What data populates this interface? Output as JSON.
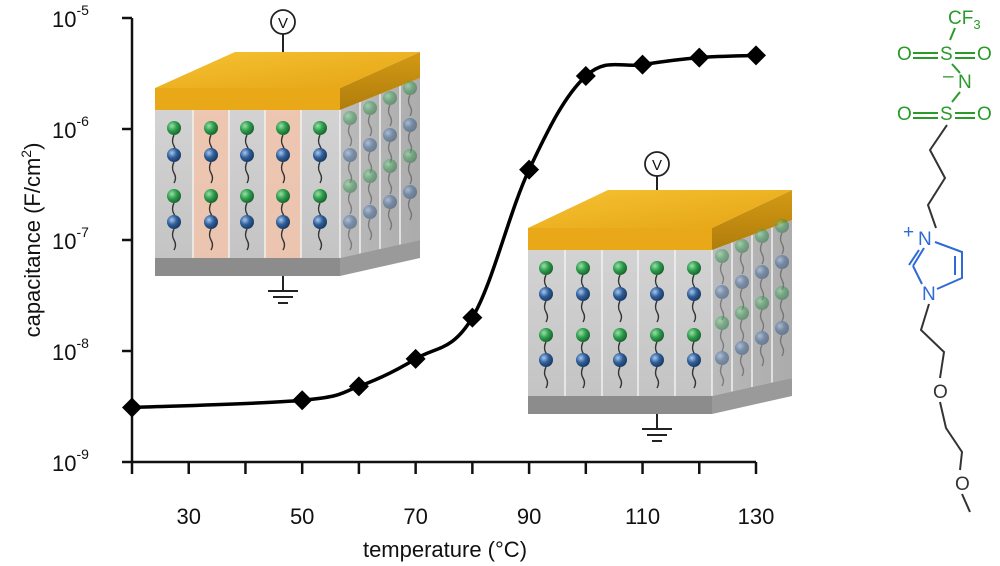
{
  "chart_data": {
    "type": "line",
    "title": "",
    "xlabel": "temperature (°C)",
    "ylabel": "capacitance (F/cm²)",
    "ylabel_parts": {
      "main": "capacitance (F/cm",
      "sup": "2",
      "close": ")"
    },
    "xlim": [
      20,
      130
    ],
    "ylim": [
      1e-09,
      1e-05
    ],
    "yscale": "log",
    "x_ticks": [
      30,
      50,
      70,
      90,
      110,
      130
    ],
    "y_ticks": [
      {
        "value": 1e-05,
        "base": "10",
        "exp": "-5"
      },
      {
        "value": 1e-06,
        "base": "10",
        "exp": "-6"
      },
      {
        "value": 1e-07,
        "base": "10",
        "exp": "-7"
      },
      {
        "value": 1e-08,
        "base": "10",
        "exp": "-8"
      },
      {
        "value": 1e-09,
        "base": "10",
        "exp": "-9"
      }
    ],
    "series": [
      {
        "x": [
          20,
          50,
          60,
          70,
          80,
          90,
          100,
          110,
          120,
          130
        ],
        "y": [
          3.1e-09,
          3.6e-09,
          4.8e-09,
          8.5e-09,
          2e-08,
          4.3e-07,
          3e-06,
          3.8e-06,
          4.4e-06,
          4.6e-06
        ],
        "color": "#000000",
        "marker": "diamond"
      }
    ],
    "grid": false,
    "legend": "none"
  },
  "insets": {
    "low_temp_probe_label": "V",
    "high_temp_probe_label": "V",
    "electrode_color": "#f0b41e",
    "headgroup_green": "#2e9e4e",
    "headgroup_blue": "#2f5f9a",
    "domain_pink": "#f2c4ad"
  },
  "molecule": {
    "color_anion": "#2a9a2a",
    "color_cation": "#2f6bd6",
    "color_chain": "#333333",
    "labels": {
      "cf3_main": "CF",
      "cf3_sub": "3",
      "o1": "O",
      "s1": "S",
      "o2": "O",
      "n_anion": "N",
      "n_charge": "–",
      "o3": "O",
      "s2": "S",
      "o4": "O",
      "n_plus_charge": "+",
      "n_plus": "N",
      "n_ring": "N",
      "o_ether1": "O",
      "o_ether2": "O"
    }
  }
}
